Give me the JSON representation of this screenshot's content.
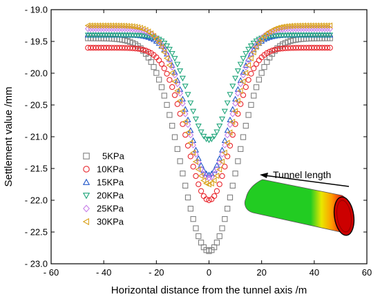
{
  "chart_data": {
    "type": "scatter",
    "xlabel": "Horizontal distance from the tunnel axis /m",
    "ylabel": "Settlement value /mm",
    "xlim": [
      -60,
      60
    ],
    "ylim": [
      -23.0,
      -19.0
    ],
    "xticks": [
      -60,
      -40,
      -20,
      0,
      20,
      40,
      60
    ],
    "yticks": [
      -19.0,
      -19.5,
      -20.0,
      -20.5,
      -21.0,
      -21.5,
      -22.0,
      -22.5,
      -23.0
    ],
    "x_range": [
      -46,
      46
    ],
    "x_step": 1,
    "grid": false,
    "legend": "left",
    "series": [
      {
        "name": "5KPa",
        "marker": "square",
        "color": "#808080",
        "base": -19.45,
        "min": -22.8,
        "sigma": 10.5
      },
      {
        "name": "10KPa",
        "marker": "circle",
        "color": "#e8242b",
        "base": -19.6,
        "min": -22.0,
        "sigma": 8.5
      },
      {
        "name": "15KPa",
        "marker": "triangle-up",
        "color": "#2157c9",
        "base": -19.4,
        "min": -21.6,
        "sigma": 8.0
      },
      {
        "name": "20KPa",
        "marker": "triangle-down",
        "color": "#1fa57a",
        "base": -19.4,
        "min": -21.05,
        "sigma": 7.5
      },
      {
        "name": "25KPa",
        "marker": "diamond",
        "color": "#c77ee8",
        "base": -19.3,
        "min": -21.65,
        "sigma": 8.5
      },
      {
        "name": "30KPa",
        "marker": "triangle-left",
        "color": "#d9a017",
        "base": -19.25,
        "min": -21.75,
        "sigma": 9.0
      }
    ],
    "annotation": {
      "text": "Tunnel length",
      "arrow": "left"
    },
    "inset_colors": {
      "outer": "#22cc22",
      "band_yellow": "#e8e800",
      "band_orange": "#ff9900",
      "band_red": "#ee1111",
      "inner_red": "#cc0000",
      "ring": "#000000"
    }
  }
}
